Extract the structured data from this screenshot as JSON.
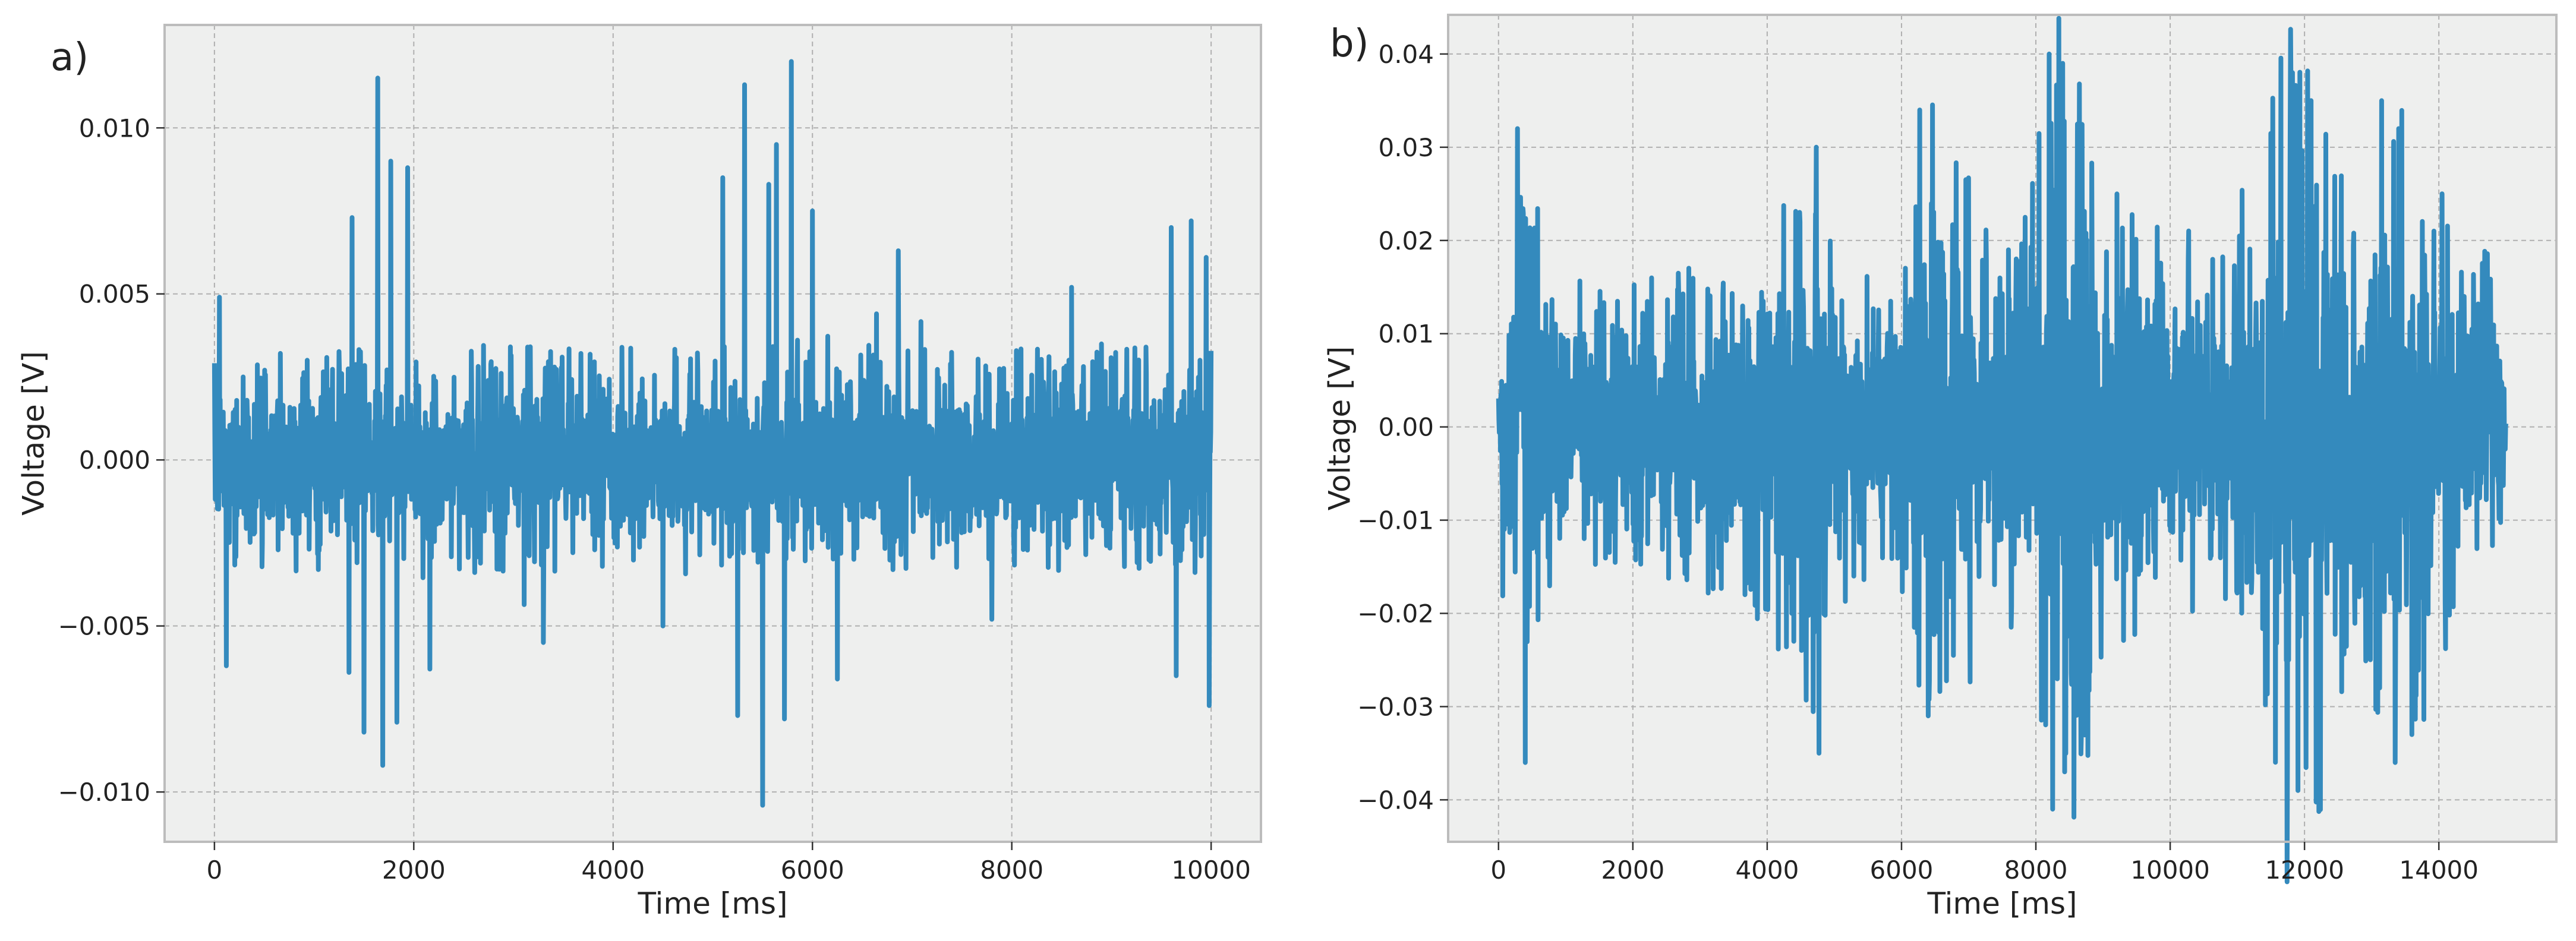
{
  "colors": {
    "line": "#348ABD",
    "plot_bg": "#EEEFEE",
    "grid": "#B0B0B0",
    "frame": "#BCBCBC",
    "text": "#222222"
  },
  "chart_data": [
    {
      "type": "line",
      "panel_label": "a)",
      "xlabel": "Time [ms]",
      "ylabel": "Voltage [V]",
      "xlim": [
        -500,
        10500
      ],
      "ylim": [
        -0.0115,
        0.0131
      ],
      "xticks": [
        0,
        2000,
        4000,
        6000,
        8000,
        10000
      ],
      "xtick_labels": [
        "0",
        "2000",
        "4000",
        "6000",
        "8000",
        "10000"
      ],
      "yticks": [
        -0.01,
        -0.005,
        0.0,
        0.005,
        0.01
      ],
      "ytick_labels": [
        "−0.010",
        "−0.005",
        "0.000",
        "0.005",
        "0.010"
      ],
      "grid": true,
      "series": [
        {
          "x_range": [
            0,
            10000
          ],
          "noise_envelope": {
            "x": [
              0,
              1000,
              2000,
              3000,
              4000,
              5000,
              6000,
              7000,
              8000,
              9000,
              10000
            ],
            "amplitude": [
              0.0025,
              0.0026,
              0.0028,
              0.0027,
              0.0026,
              0.0027,
              0.0028,
              0.0026,
              0.0026,
              0.0027,
              0.0028
            ]
          },
          "peaks": [
            {
              "x": 1640,
              "y": 0.0115
            },
            {
              "x": 1690,
              "y": -0.0092
            },
            {
              "x": 1770,
              "y": 0.009
            },
            {
              "x": 1500,
              "y": -0.0082
            },
            {
              "x": 1380,
              "y": 0.0073
            },
            {
              "x": 1830,
              "y": -0.0079
            },
            {
              "x": 1940,
              "y": 0.0088
            },
            {
              "x": 2160,
              "y": -0.0063
            },
            {
              "x": 1350,
              "y": -0.0064
            },
            {
              "x": 5320,
              "y": 0.0113
            },
            {
              "x": 5500,
              "y": -0.0104
            },
            {
              "x": 5640,
              "y": 0.0095
            },
            {
              "x": 5790,
              "y": 0.012
            },
            {
              "x": 5250,
              "y": -0.0077
            },
            {
              "x": 5560,
              "y": 0.0083
            },
            {
              "x": 5720,
              "y": -0.0078
            },
            {
              "x": 5100,
              "y": 0.0085
            },
            {
              "x": 6000,
              "y": 0.0075
            },
            {
              "x": 6250,
              "y": -0.0066
            },
            {
              "x": 6860,
              "y": 0.0063
            },
            {
              "x": 9600,
              "y": 0.007
            },
            {
              "x": 9800,
              "y": 0.0072
            },
            {
              "x": 9950,
              "y": 0.0061
            },
            {
              "x": 9980,
              "y": -0.0074
            },
            {
              "x": 9650,
              "y": -0.0065
            },
            {
              "x": 120,
              "y": -0.0062
            },
            {
              "x": 50,
              "y": 0.0049
            },
            {
              "x": 3300,
              "y": -0.0055
            },
            {
              "x": 4500,
              "y": -0.005
            },
            {
              "x": 7800,
              "y": -0.0048
            },
            {
              "x": 8600,
              "y": 0.0052
            }
          ]
        }
      ]
    },
    {
      "type": "line",
      "panel_label": "b)",
      "xlabel": "Time [ms]",
      "ylabel": "Voltage [V]",
      "xlim": [
        -750,
        15750
      ],
      "ylim": [
        -0.0445,
        0.0442
      ],
      "xticks": [
        0,
        2000,
        4000,
        6000,
        8000,
        10000,
        12000,
        14000
      ],
      "xtick_labels": [
        "0",
        "2000",
        "4000",
        "6000",
        "8000",
        "10000",
        "12000",
        "14000"
      ],
      "yticks": [
        -0.04,
        -0.03,
        -0.02,
        -0.01,
        0.0,
        0.01,
        0.02,
        0.03,
        0.04
      ],
      "ytick_labels": [
        "−0.04",
        "−0.03",
        "−0.02",
        "−0.01",
        "0.00",
        "0.01",
        "0.02",
        "0.03",
        "0.04"
      ],
      "grid": true,
      "series": [
        {
          "x_range": [
            0,
            15000
          ],
          "noise_envelope": {
            "x": [
              0,
              300,
              600,
              900,
              1200,
              1600,
              2000,
              2500,
              3000,
              3500,
              4000,
              4300,
              4700,
              5000,
              5400,
              5800,
              6100,
              6400,
              6700,
              7000,
              7400,
              7800,
              8100,
              8400,
              8700,
              9000,
              9400,
              9800,
              10200,
              10600,
              11000,
              11400,
              11800,
              12100,
              12400,
              12700,
              13000,
              13300,
              13600,
              14000,
              14500,
              15000
            ],
            "amplitude": [
              0.012,
              0.024,
              0.021,
              0.014,
              0.012,
              0.013,
              0.012,
              0.013,
              0.014,
              0.015,
              0.018,
              0.021,
              0.024,
              0.02,
              0.013,
              0.012,
              0.016,
              0.03,
              0.027,
              0.022,
              0.014,
              0.019,
              0.03,
              0.036,
              0.031,
              0.021,
              0.019,
              0.02,
              0.017,
              0.014,
              0.019,
              0.024,
              0.036,
              0.033,
              0.03,
              0.018,
              0.022,
              0.032,
              0.029,
              0.02,
              0.016,
              0.014
            ]
          },
          "peaks": [
            {
              "x": 280,
              "y": 0.032
            },
            {
              "x": 400,
              "y": -0.036
            },
            {
              "x": 4730,
              "y": 0.03
            },
            {
              "x": 4770,
              "y": -0.035
            },
            {
              "x": 6270,
              "y": 0.034
            },
            {
              "x": 6400,
              "y": -0.031
            },
            {
              "x": 8200,
              "y": 0.04
            },
            {
              "x": 8250,
              "y": -0.041
            },
            {
              "x": 8400,
              "y": 0.039
            },
            {
              "x": 8430,
              "y": -0.037
            },
            {
              "x": 11800,
              "y": 0.037
            },
            {
              "x": 11900,
              "y": -0.039
            },
            {
              "x": 12100,
              "y": 0.035
            },
            {
              "x": 12200,
              "y": -0.035
            },
            {
              "x": 13150,
              "y": 0.035
            },
            {
              "x": 13350,
              "y": -0.036
            },
            {
              "x": 13400,
              "y": 0.032
            },
            {
              "x": 13600,
              "y": -0.033
            }
          ]
        }
      ]
    }
  ]
}
